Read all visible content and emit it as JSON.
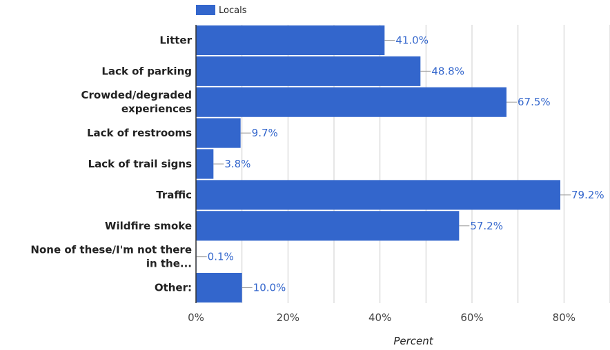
{
  "chart_data": {
    "type": "bar",
    "orientation": "horizontal",
    "categories": [
      [
        "Litter"
      ],
      [
        "Lack of parking"
      ],
      [
        "Crowded/degraded",
        "experiences"
      ],
      [
        "Lack of restrooms"
      ],
      [
        "Lack of trail signs"
      ],
      [
        "Traffic"
      ],
      [
        "Wildfire smoke"
      ],
      [
        "None of these/I'm not there",
        "in the..."
      ],
      [
        "Other:"
      ]
    ],
    "series": [
      {
        "name": "Locals",
        "values": [
          41.0,
          48.8,
          67.5,
          9.7,
          3.8,
          79.2,
          57.2,
          0.1,
          10.0
        ],
        "value_labels": [
          "41.0%",
          "48.8%",
          "67.5%",
          "9.7%",
          "3.8%",
          "79.2%",
          "57.2%",
          "0.1%",
          "10.0%"
        ]
      }
    ],
    "xlabel": "Percent",
    "xlim": [
      0,
      90
    ],
    "xticks": [
      0,
      20,
      40,
      60,
      80
    ],
    "xtick_labels": [
      "0%",
      "20%",
      "40%",
      "60%",
      "80%"
    ],
    "grid": true,
    "legend_position": "top-left",
    "colors": {
      "bar": "#3366cc",
      "data_label": "#3366cc",
      "gridline": "#cccccc",
      "axis": "#333333",
      "leader_line": "#999999"
    }
  }
}
